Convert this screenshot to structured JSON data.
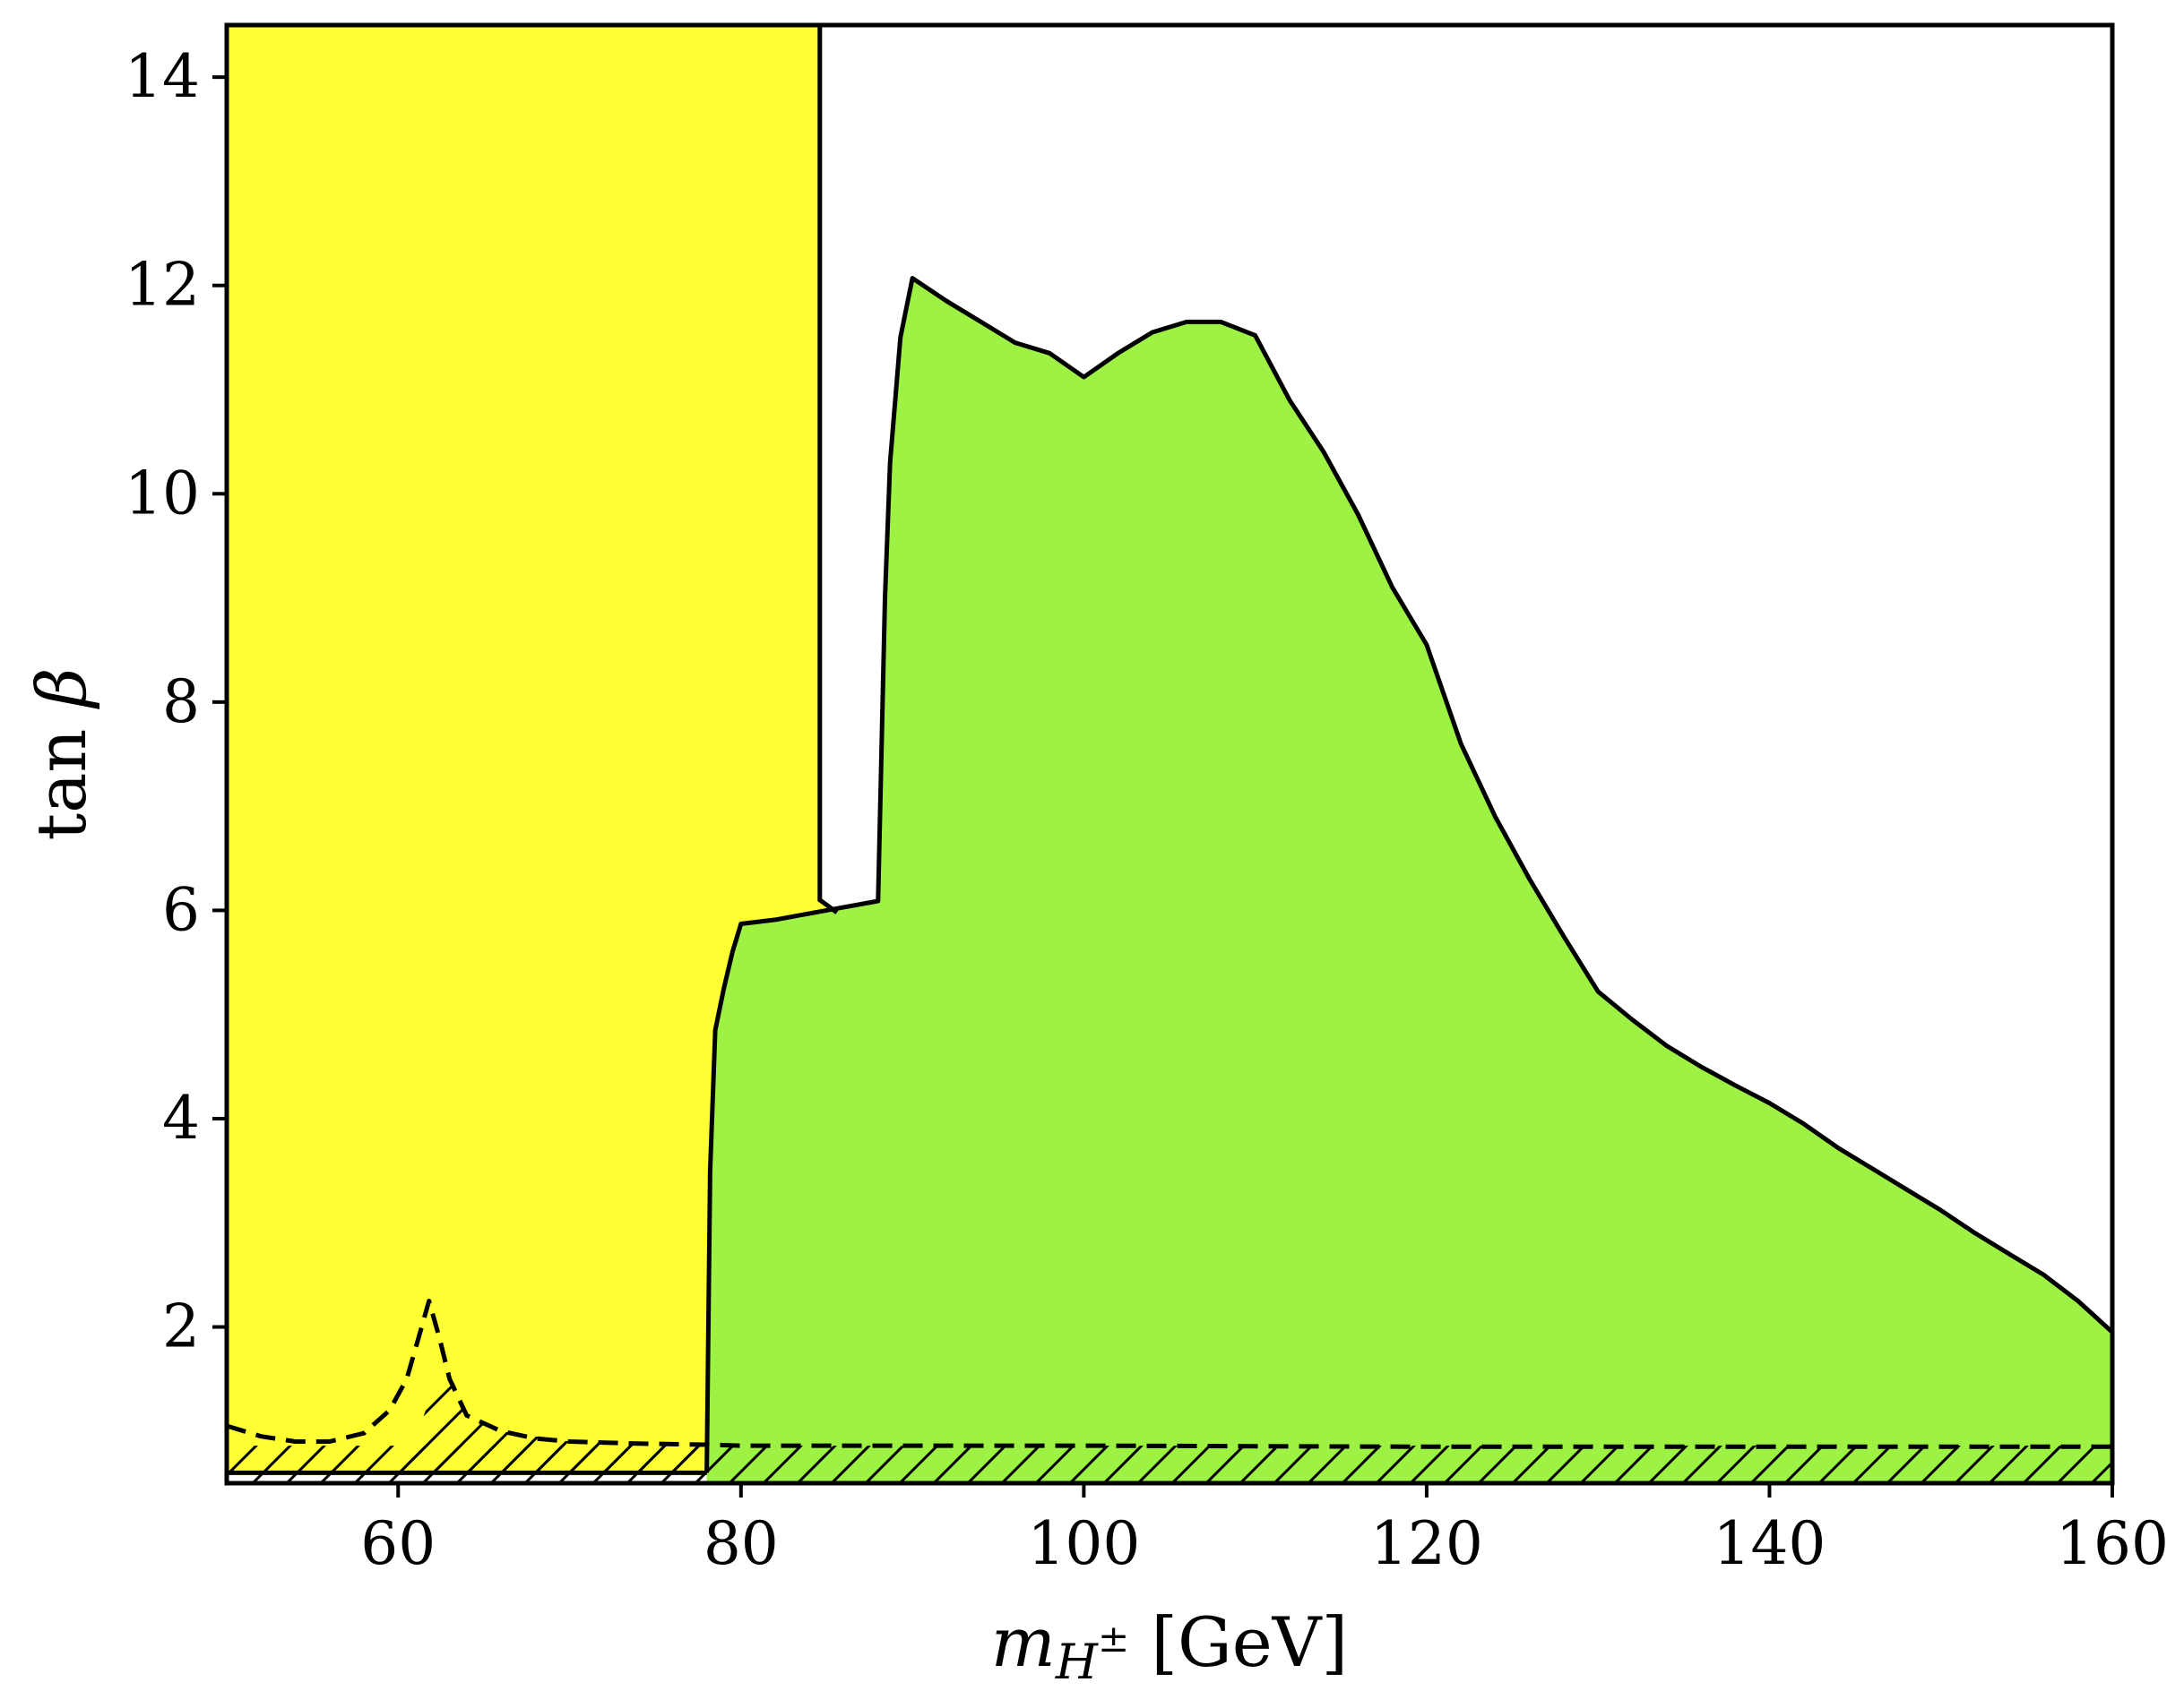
{
  "chart_data": {
    "type": "area",
    "xlabel": "m_{H±} [GeV]",
    "ylabel": "tan β",
    "xlim": [
      50,
      160
    ],
    "ylim": [
      0.5,
      14.5
    ],
    "xticks": [
      60,
      80,
      100,
      120,
      140,
      160
    ],
    "yticks": [
      2,
      4,
      6,
      8,
      10,
      12,
      14
    ],
    "grid": false,
    "legend": "none",
    "colors": {
      "yellow_region": "#ffff33",
      "green_region": "#9ef243",
      "outline": "#000000"
    },
    "regions": [
      {
        "fill": "yellow",
        "description_points": [
          [
            50,
            0.5
          ],
          [
            50,
            14.5
          ],
          [
            84.6,
            14.5
          ],
          [
            84.6,
            6.1
          ],
          [
            85.3,
            6.0
          ],
          [
            86.0,
            5.95
          ],
          [
            88.0,
            6.08
          ],
          [
            78.0,
            0.6
          ],
          [
            50,
            0.6
          ]
        ]
      },
      {
        "fill": "green",
        "boundary": [
          [
            78.0,
            0.6
          ],
          [
            78.2,
            3.5
          ],
          [
            78.5,
            4.85
          ],
          [
            79.0,
            5.25
          ],
          [
            79.5,
            5.6
          ],
          [
            80.0,
            5.87
          ],
          [
            82.0,
            5.91
          ],
          [
            84.0,
            5.97
          ],
          [
            86.0,
            6.03
          ],
          [
            88.0,
            6.09
          ],
          [
            88.4,
            9.0
          ],
          [
            88.7,
            10.3
          ],
          [
            89.3,
            11.5
          ],
          [
            90.0,
            12.07
          ],
          [
            92.0,
            11.85
          ],
          [
            94.0,
            11.65
          ],
          [
            96.0,
            11.45
          ],
          [
            98.0,
            11.35
          ],
          [
            100.0,
            11.12
          ],
          [
            102.0,
            11.35
          ],
          [
            104.0,
            11.55
          ],
          [
            106.0,
            11.65
          ],
          [
            108.0,
            11.65
          ],
          [
            110.0,
            11.52
          ],
          [
            112.0,
            10.9
          ],
          [
            114.0,
            10.4
          ],
          [
            116.0,
            9.8
          ],
          [
            118.0,
            9.1
          ],
          [
            120.0,
            8.55
          ],
          [
            122.0,
            7.6
          ],
          [
            124.0,
            6.9
          ],
          [
            126.0,
            6.3
          ],
          [
            128.0,
            5.75
          ],
          [
            130.0,
            5.22
          ],
          [
            132.0,
            4.95
          ],
          [
            134.0,
            4.7
          ],
          [
            136.0,
            4.5
          ],
          [
            138.0,
            4.32
          ],
          [
            140.0,
            4.15
          ],
          [
            142.0,
            3.95
          ],
          [
            144.0,
            3.72
          ],
          [
            146.0,
            3.52
          ],
          [
            148.0,
            3.32
          ],
          [
            150.0,
            3.12
          ],
          [
            152.0,
            2.9
          ],
          [
            154.0,
            2.7
          ],
          [
            156.0,
            2.5
          ],
          [
            158.0,
            2.25
          ],
          [
            160.0,
            1.95
          ]
        ]
      }
    ],
    "dashed_curve": [
      [
        50.0,
        1.05
      ],
      [
        52.0,
        0.95
      ],
      [
        54.0,
        0.9
      ],
      [
        56.0,
        0.9
      ],
      [
        58.0,
        0.98
      ],
      [
        59.5,
        1.2
      ],
      [
        60.5,
        1.5
      ],
      [
        61.2,
        1.9
      ],
      [
        61.8,
        2.25
      ],
      [
        62.4,
        1.9
      ],
      [
        63.0,
        1.5
      ],
      [
        64.0,
        1.15
      ],
      [
        66.0,
        1.0
      ],
      [
        68.0,
        0.93
      ],
      [
        70.0,
        0.9
      ],
      [
        74.0,
        0.88
      ],
      [
        78.0,
        0.87
      ],
      [
        80.0,
        0.86
      ],
      [
        90.0,
        0.86
      ],
      [
        100.0,
        0.86
      ],
      [
        120.0,
        0.85
      ],
      [
        140.0,
        0.85
      ],
      [
        160.0,
        0.85
      ]
    ],
    "hatched_band": {
      "y_range": [
        0.5,
        0.86
      ],
      "x_range": [
        50,
        160
      ]
    },
    "hatched_peak": {
      "points": [
        [
          60.3,
          0.6
        ],
        [
          62.7,
          1.7
        ],
        [
          64.0,
          1.15
        ],
        [
          66.0,
          1.0
        ],
        [
          70.0,
          0.9
        ],
        [
          78.0,
          0.87
        ],
        [
          78.0,
          0.6
        ]
      ]
    }
  }
}
